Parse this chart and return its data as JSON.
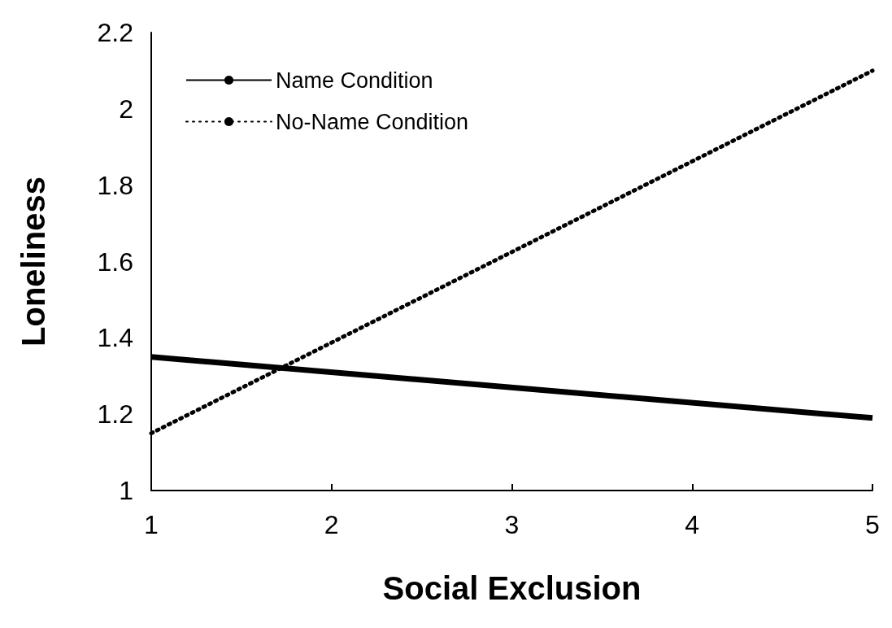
{
  "chart_data": {
    "type": "line",
    "xlabel": "Social Exclusion",
    "ylabel": "Loneliness",
    "x": [
      1,
      5
    ],
    "series": [
      {
        "name": "Name Condition",
        "color": "#000000",
        "line_style": "solid",
        "values": [
          1.35,
          1.19
        ]
      },
      {
        "name": "No-Name Condition",
        "color": "#000000",
        "line_style": "dotted",
        "values": [
          1.15,
          2.1
        ]
      }
    ],
    "xlim": [
      1,
      5
    ],
    "xticks": [
      1,
      2,
      3,
      4,
      5
    ],
    "ylim": [
      1,
      2.2
    ],
    "yticks": [
      1,
      1.2,
      1.4,
      1.6,
      1.8,
      2,
      2.2
    ],
    "grid": false,
    "legend": "top left",
    "marker": "none"
  }
}
